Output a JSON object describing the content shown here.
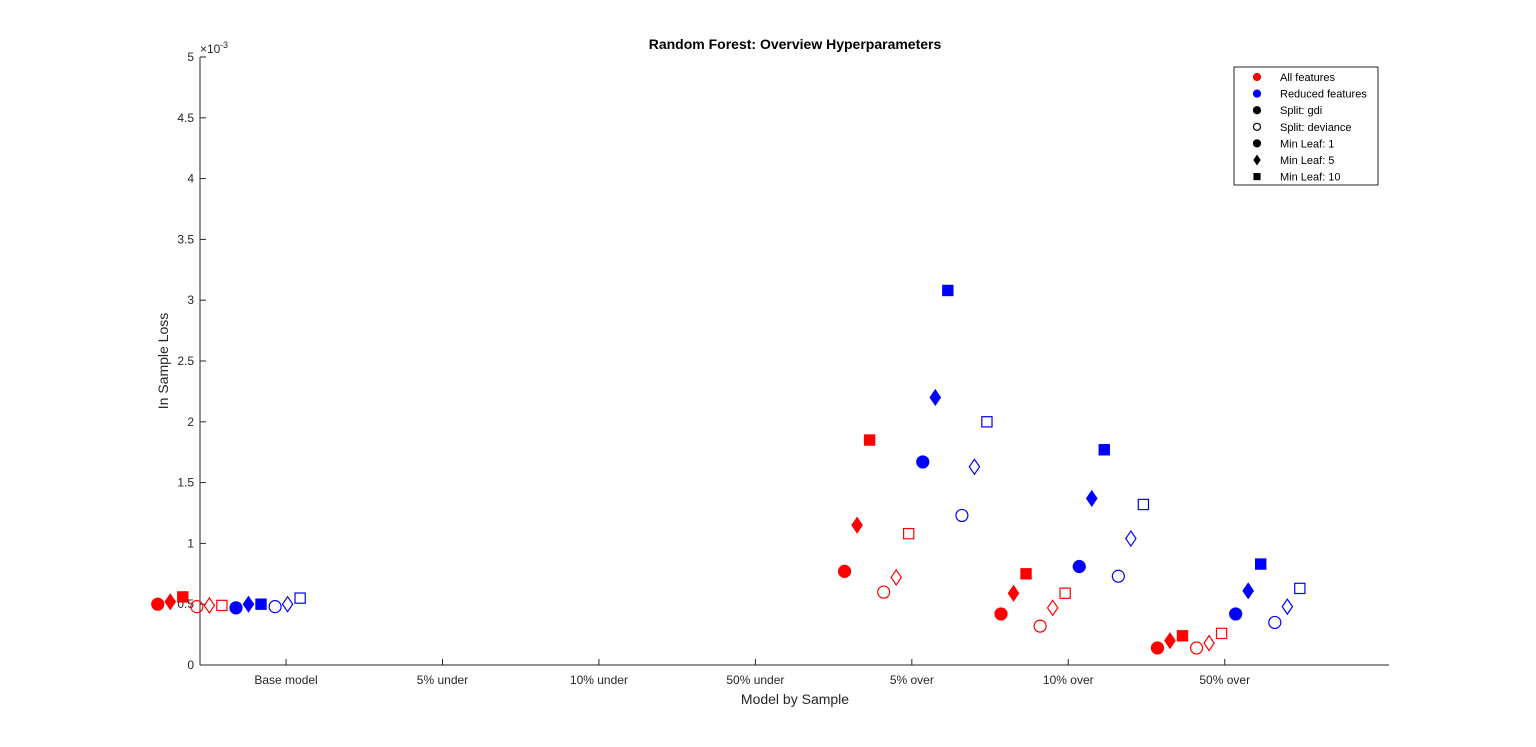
{
  "chart_data": {
    "type": "scatter",
    "title": "Random Forest: Overview Hyperparameters",
    "xlabel": "Model by Sample",
    "ylabel": "In Sample Loss",
    "y_exponent_base": "×10",
    "y_exponent_power": "-3",
    "categories": [
      "Base model",
      "5% under",
      "10% under",
      "50% under",
      "5% over",
      "10% over",
      "50% over"
    ],
    "ylim": [
      0,
      5
    ],
    "yticks": [
      "0",
      "0.5",
      "1",
      "1.5",
      "2",
      "2.5",
      "3",
      "3.5",
      "4",
      "4.5",
      "5"
    ],
    "series": [
      {
        "feature": "All features",
        "split": "gdi",
        "min_leaf": 1,
        "points": [
          {
            "x": 0.18,
            "y": 0.5
          },
          {
            "x": 4.57,
            "y": 0.77
          },
          {
            "x": 5.57,
            "y": 0.42
          },
          {
            "x": 6.57,
            "y": 0.14
          }
        ]
      },
      {
        "feature": "All features",
        "split": "gdi",
        "min_leaf": 5,
        "points": [
          {
            "x": 0.26,
            "y": 0.52
          },
          {
            "x": 4.65,
            "y": 1.15
          },
          {
            "x": 5.65,
            "y": 0.59
          },
          {
            "x": 6.65,
            "y": 0.2
          }
        ]
      },
      {
        "feature": "All features",
        "split": "gdi",
        "min_leaf": 10,
        "points": [
          {
            "x": 0.34,
            "y": 0.56
          },
          {
            "x": 4.73,
            "y": 1.85
          },
          {
            "x": 5.73,
            "y": 0.75
          },
          {
            "x": 6.73,
            "y": 0.24
          }
        ]
      },
      {
        "feature": "All features",
        "split": "deviance",
        "min_leaf": 1,
        "points": [
          {
            "x": 0.43,
            "y": 0.48
          },
          {
            "x": 4.82,
            "y": 0.6
          },
          {
            "x": 5.82,
            "y": 0.32
          },
          {
            "x": 6.82,
            "y": 0.14
          }
        ]
      },
      {
        "feature": "All features",
        "split": "deviance",
        "min_leaf": 5,
        "points": [
          {
            "x": 0.51,
            "y": 0.49
          },
          {
            "x": 4.9,
            "y": 0.72
          },
          {
            "x": 5.9,
            "y": 0.47
          },
          {
            "x": 6.9,
            "y": 0.18
          }
        ]
      },
      {
        "feature": "All features",
        "split": "deviance",
        "min_leaf": 10,
        "points": [
          {
            "x": 0.59,
            "y": 0.49
          },
          {
            "x": 4.98,
            "y": 1.08
          },
          {
            "x": 5.98,
            "y": 0.59
          },
          {
            "x": 6.98,
            "y": 0.26
          }
        ]
      },
      {
        "feature": "Reduced features",
        "split": "gdi",
        "min_leaf": 1,
        "points": [
          {
            "x": 0.68,
            "y": 0.47
          },
          {
            "x": 5.07,
            "y": 1.67
          },
          {
            "x": 6.07,
            "y": 0.81
          },
          {
            "x": 7.07,
            "y": 0.42
          }
        ]
      },
      {
        "feature": "Reduced features",
        "split": "gdi",
        "min_leaf": 5,
        "points": [
          {
            "x": 0.76,
            "y": 0.5
          },
          {
            "x": 5.15,
            "y": 2.2
          },
          {
            "x": 6.15,
            "y": 1.37
          },
          {
            "x": 7.15,
            "y": 0.61
          }
        ]
      },
      {
        "feature": "Reduced features",
        "split": "gdi",
        "min_leaf": 10,
        "points": [
          {
            "x": 0.84,
            "y": 0.5
          },
          {
            "x": 5.23,
            "y": 3.08
          },
          {
            "x": 6.23,
            "y": 1.77
          },
          {
            "x": 7.23,
            "y": 0.83
          }
        ]
      },
      {
        "feature": "Reduced features",
        "split": "deviance",
        "min_leaf": 1,
        "points": [
          {
            "x": 0.93,
            "y": 0.48
          },
          {
            "x": 5.32,
            "y": 1.23
          },
          {
            "x": 6.32,
            "y": 0.73
          },
          {
            "x": 7.32,
            "y": 0.35
          }
        ]
      },
      {
        "feature": "Reduced features",
        "split": "deviance",
        "min_leaf": 5,
        "points": [
          {
            "x": 1.01,
            "y": 0.5
          },
          {
            "x": 5.4,
            "y": 1.63
          },
          {
            "x": 6.4,
            "y": 1.04
          },
          {
            "x": 7.4,
            "y": 0.48
          }
        ]
      },
      {
        "feature": "Reduced features",
        "split": "deviance",
        "min_leaf": 10,
        "points": [
          {
            "x": 1.09,
            "y": 0.55
          },
          {
            "x": 5.48,
            "y": 2.0
          },
          {
            "x": 6.48,
            "y": 1.32
          },
          {
            "x": 7.48,
            "y": 0.63
          }
        ]
      }
    ],
    "colors": {
      "All features": "#ff0000",
      "Reduced features": "#0000ff"
    },
    "marker_fill": {
      "gdi": "filled",
      "deviance": "hollow"
    },
    "marker_shape": {
      "1": "circle",
      "5": "diamond",
      "10": "square"
    },
    "legend": {
      "placement": "top-right",
      "entries": [
        {
          "label": "All features",
          "marker": "circle",
          "color": "#ff0000",
          "filled": true
        },
        {
          "label": "Reduced features",
          "marker": "circle",
          "color": "#0000ff",
          "filled": true
        },
        {
          "label": "Split: gdi",
          "marker": "circle",
          "color": "#000000",
          "filled": true
        },
        {
          "label": "Split: deviance",
          "marker": "circle",
          "color": "#000000",
          "filled": false
        },
        {
          "label": "Min Leaf: 1",
          "marker": "circle",
          "color": "#000000",
          "filled": true
        },
        {
          "label": "Min Leaf: 5",
          "marker": "diamond",
          "color": "#000000",
          "filled": true
        },
        {
          "label": "Min Leaf: 10",
          "marker": "square",
          "color": "#000000",
          "filled": true
        }
      ]
    },
    "grid": false
  }
}
